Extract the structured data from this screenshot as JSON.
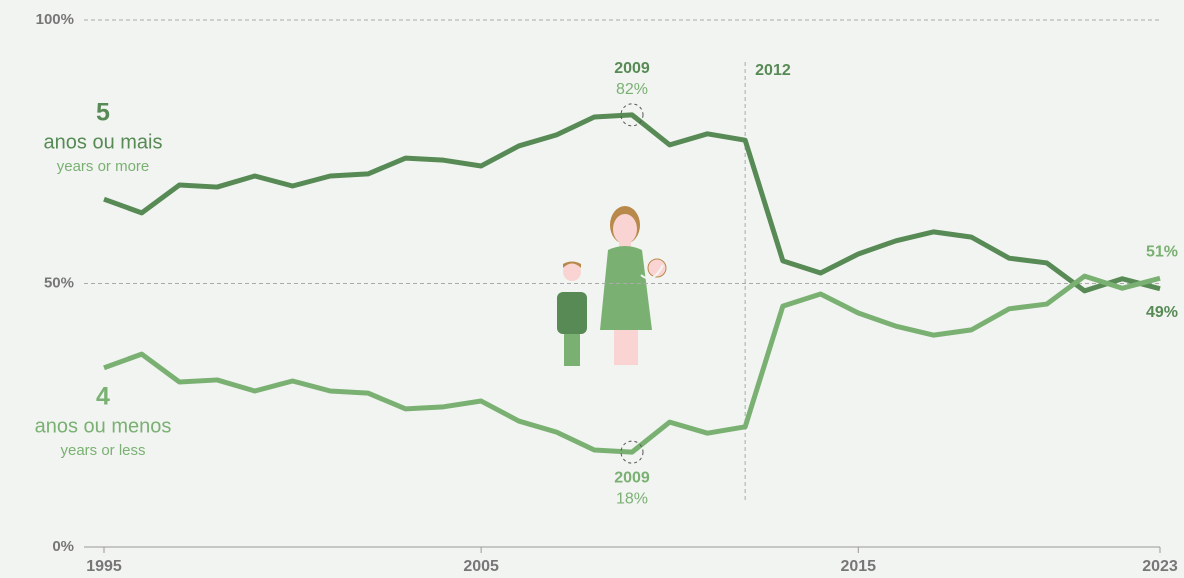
{
  "chart_data": {
    "type": "line",
    "x": [
      1995,
      1996,
      1997,
      1998,
      1999,
      2000,
      2001,
      2002,
      2003,
      2004,
      2005,
      2006,
      2007,
      2008,
      2009,
      2010,
      2011,
      2012,
      2013,
      2014,
      2015,
      2016,
      2017,
      2018,
      2019,
      2020,
      2021,
      2022,
      2023
    ],
    "series": [
      {
        "name": "anos ou mais",
        "number": 5,
        "subtitle": "years or more",
        "color": "#578a55",
        "values": [
          66,
          63.4,
          68.7,
          68.3,
          70.4,
          68.5,
          70.4,
          70.8,
          73.8,
          73.4,
          72.3,
          76.1,
          78.2,
          81.6,
          82,
          76.3,
          78.4,
          77.2,
          54.3,
          52,
          55.6,
          58.1,
          59.8,
          58.8,
          54.8,
          53.9,
          48.6,
          50.9,
          49
        ],
        "value_labels": [
          null,
          null,
          null,
          null,
          null,
          null,
          null,
          null,
          null,
          null,
          null,
          null,
          null,
          null,
          "82%",
          null,
          null,
          null,
          null,
          null,
          null,
          null,
          null,
          null,
          null,
          null,
          null,
          null,
          "49%"
        ]
      },
      {
        "name": "anos ou menos",
        "number": 4,
        "subtitle": "years or less",
        "color": "#7ab173",
        "values": [
          34,
          36.6,
          31.3,
          31.7,
          29.6,
          31.5,
          29.6,
          29.2,
          26.2,
          26.6,
          27.7,
          23.9,
          21.8,
          18.4,
          18,
          23.7,
          21.6,
          22.8,
          45.7,
          48,
          44.4,
          41.9,
          40.2,
          41.2,
          45.2,
          46.1,
          51.4,
          49.1,
          51
        ],
        "value_labels": [
          null,
          null,
          null,
          null,
          null,
          null,
          null,
          null,
          null,
          null,
          null,
          null,
          null,
          null,
          "18%",
          null,
          null,
          null,
          null,
          null,
          null,
          null,
          null,
          null,
          null,
          null,
          null,
          null,
          "51%"
        ]
      }
    ],
    "annotations": [
      {
        "x": 2009,
        "text": "2009"
      },
      {
        "x": 2009,
        "text": "2009"
      }
    ],
    "vline": {
      "x": 2012,
      "label": "2012"
    },
    "xlim": [
      1995,
      2023
    ],
    "xticks": [
      1995,
      2005,
      2015,
      2023
    ],
    "ylim": [
      0,
      100
    ],
    "yticks": [
      {
        "value": 0,
        "label": "0%"
      },
      {
        "value": 50,
        "label": "50%"
      },
      {
        "value": 100,
        "label": "100%"
      }
    ],
    "grid": true
  }
}
